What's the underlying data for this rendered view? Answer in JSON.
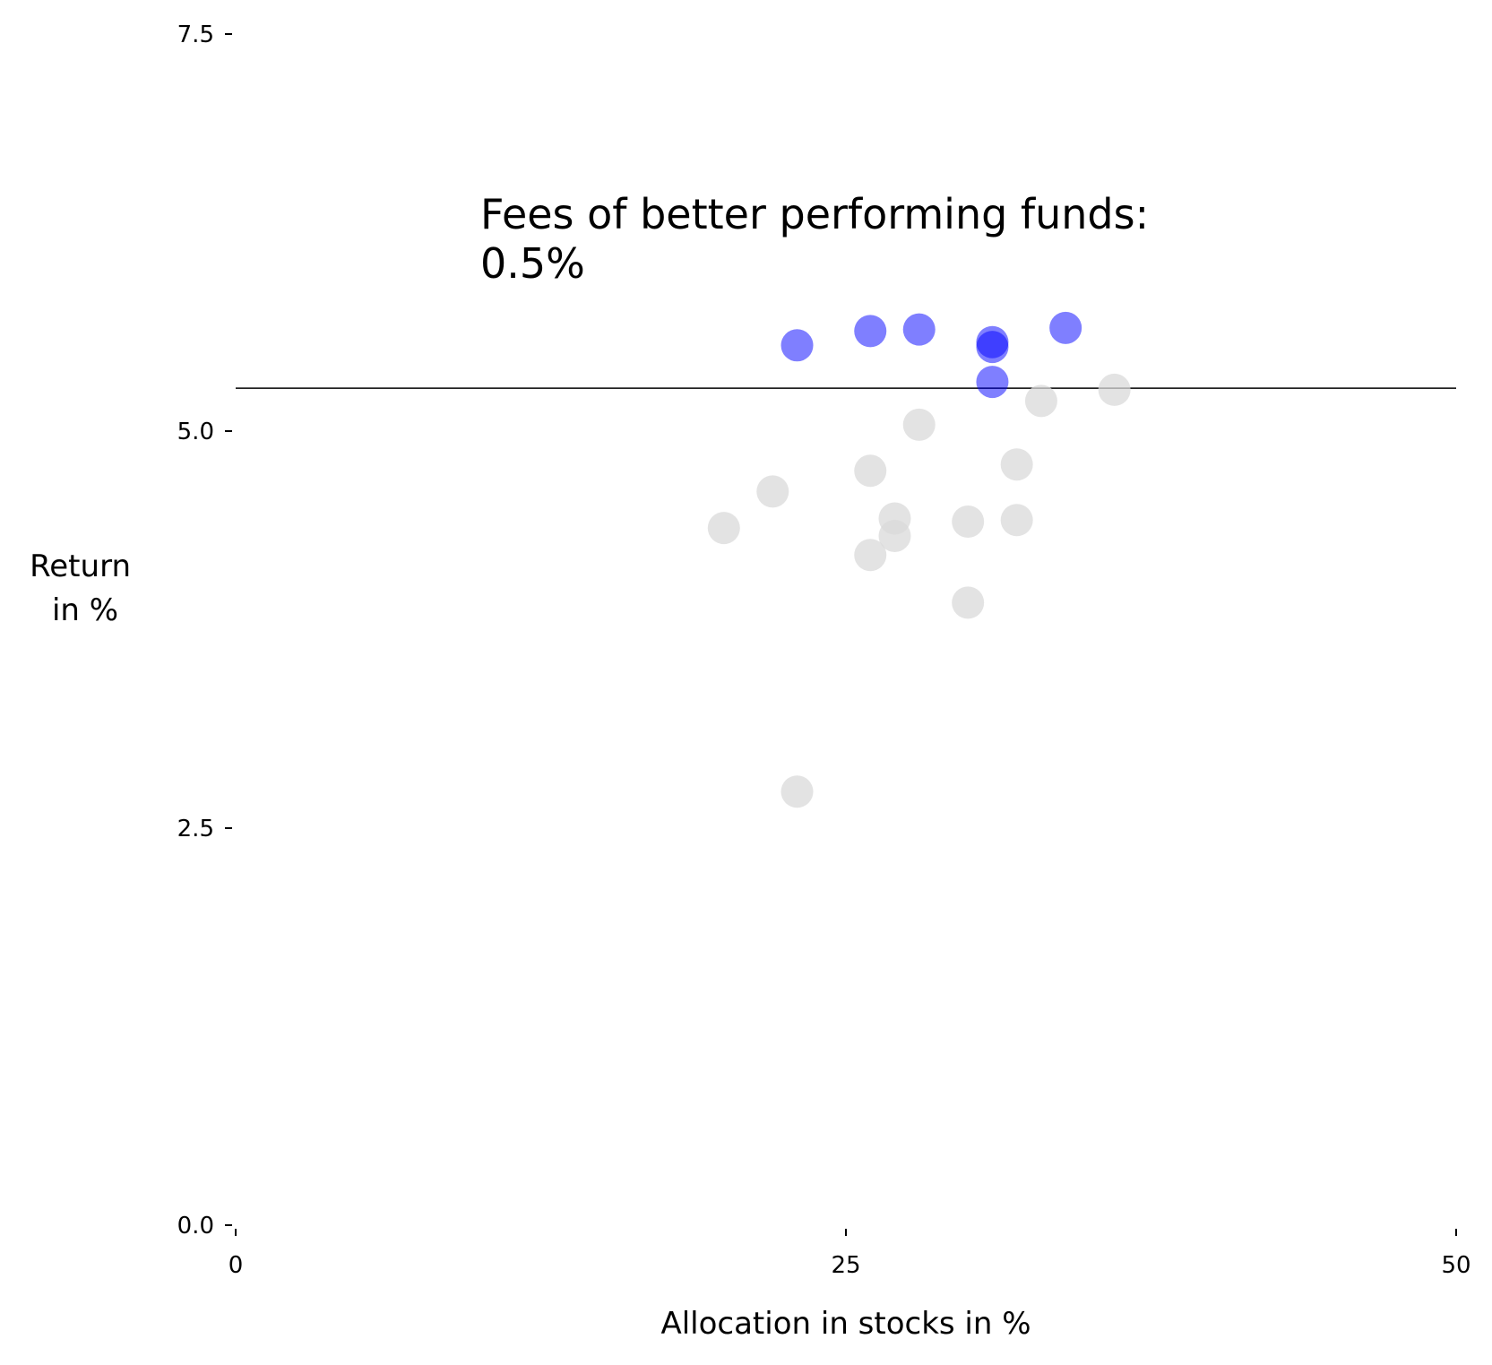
{
  "chart_data": {
    "type": "scatter",
    "title": "",
    "xlabel": "Allocation in stocks in %",
    "ylabel_lines": [
      "Return",
      "in %"
    ],
    "xlim": [
      0,
      50
    ],
    "ylim": [
      0,
      7.5
    ],
    "x_ticks": [
      0,
      25,
      50
    ],
    "x_tick_labels": [
      "0",
      "25",
      "50"
    ],
    "y_ticks": [
      0,
      2.5,
      5,
      7.5
    ],
    "y_tick_labels": [
      "0.0",
      "2.5",
      "5.0",
      "7.5"
    ],
    "grid": false,
    "reference_line": {
      "y": 5.27,
      "color": "#000000"
    },
    "annotation_lines": [
      "Fees of better performing funds:",
      "0.5%"
    ],
    "series": [
      {
        "color": "#d9d9d9",
        "opacity": 0.75,
        "points": [
          {
            "x": 23,
            "y": 2.73
          },
          {
            "x": 20,
            "y": 4.39
          },
          {
            "x": 22,
            "y": 4.62
          },
          {
            "x": 26,
            "y": 4.22
          },
          {
            "x": 26,
            "y": 4.75
          },
          {
            "x": 27,
            "y": 4.34
          },
          {
            "x": 27,
            "y": 4.45
          },
          {
            "x": 28,
            "y": 5.04
          },
          {
            "x": 30,
            "y": 3.92
          },
          {
            "x": 30,
            "y": 4.43
          },
          {
            "x": 32,
            "y": 4.44
          },
          {
            "x": 32,
            "y": 4.79
          },
          {
            "x": 33,
            "y": 5.19
          },
          {
            "x": 36,
            "y": 5.26
          }
        ]
      },
      {
        "color": "#0000ff",
        "opacity": 0.5,
        "points": [
          {
            "x": 23,
            "y": 5.54
          },
          {
            "x": 26,
            "y": 5.63
          },
          {
            "x": 28,
            "y": 5.64
          },
          {
            "x": 31,
            "y": 5.31
          },
          {
            "x": 31,
            "y": 5.53
          },
          {
            "x": 31,
            "y": 5.56
          },
          {
            "x": 34,
            "y": 5.65
          }
        ]
      }
    ]
  }
}
